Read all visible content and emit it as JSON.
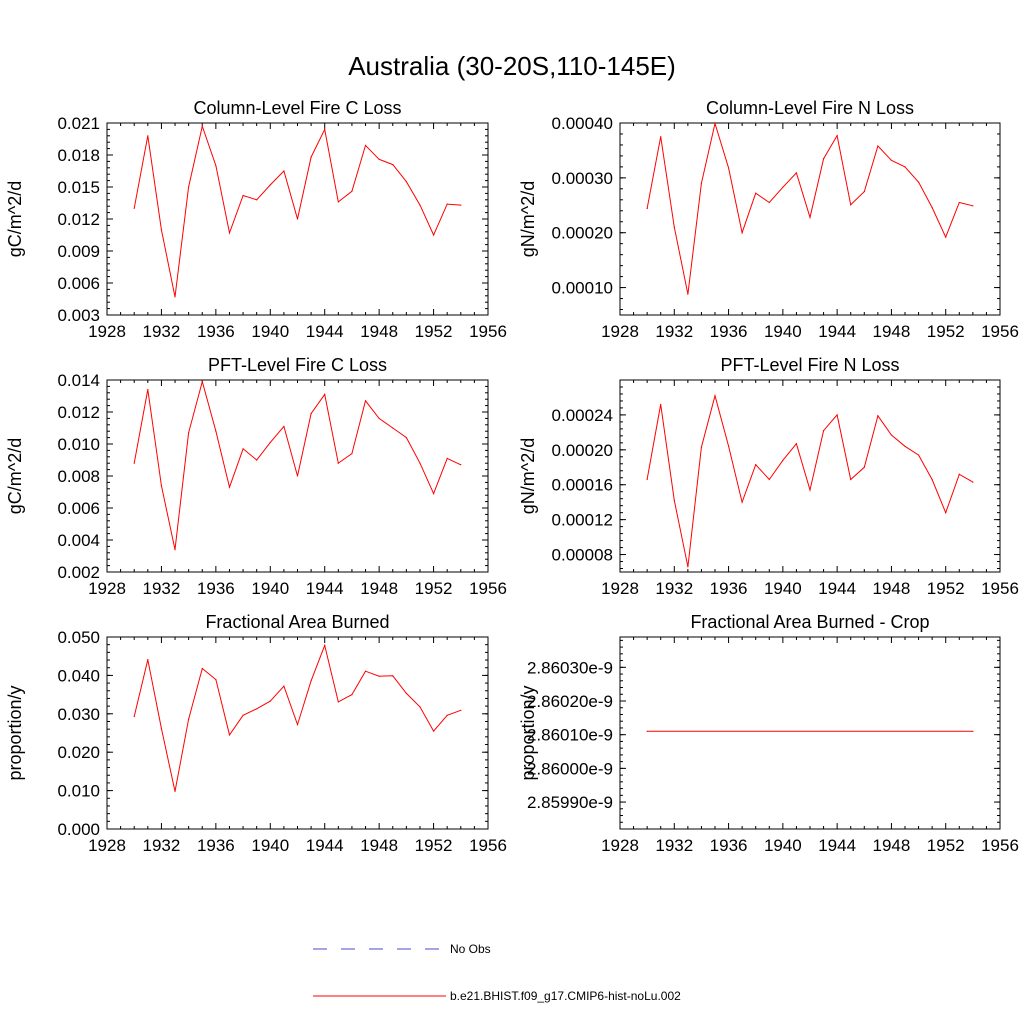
{
  "title": "Australia (30-20S,110-145E)",
  "colors": {
    "model": "#ff0000",
    "obs": "#4b4bcc",
    "axis": "#000000"
  },
  "legend": {
    "obs_label": "No Obs",
    "model_label": "b.e21.BHIST.f09_g17.CMIP6-hist-noLu.002"
  },
  "chart_data": [
    {
      "type": "line",
      "title": "Column-Level Fire C Loss",
      "ylabel": "gC/m^2/d",
      "xlim": [
        1928,
        1956
      ],
      "ylim": [
        0.003,
        0.021
      ],
      "xticks": [
        "1928",
        "1932",
        "1936",
        "1940",
        "1944",
        "1948",
        "1952",
        "1956"
      ],
      "yticks": [
        "0.003",
        "0.006",
        "0.009",
        "0.012",
        "0.015",
        "0.018",
        "0.021"
      ],
      "x": [
        1930,
        1931,
        1932,
        1933,
        1934,
        1935,
        1936,
        1937,
        1938,
        1939,
        1940,
        1941,
        1942,
        1943,
        1944,
        1945,
        1946,
        1947,
        1948,
        1949,
        1950,
        1951,
        1952,
        1953,
        1954
      ],
      "series": [
        {
          "name": "b.e21.BHIST.f09_g17.CMIP6-hist-noLu.002",
          "values": [
            0.013,
            0.0198,
            0.011,
            0.0047,
            0.015,
            0.0207,
            0.017,
            0.0107,
            0.0142,
            0.0138,
            0.0152,
            0.0165,
            0.012,
            0.0178,
            0.0204,
            0.0136,
            0.0146,
            0.0189,
            0.0176,
            0.0171,
            0.0155,
            0.0133,
            0.0105,
            0.0134,
            0.0133
          ]
        }
      ]
    },
    {
      "type": "line",
      "title": "Column-Level Fire N Loss",
      "ylabel": "gN/m^2/d",
      "xlim": [
        1928,
        1956
      ],
      "ylim": [
        5e-05,
        0.0004
      ],
      "xticks": [
        "1928",
        "1932",
        "1936",
        "1940",
        "1944",
        "1948",
        "1952",
        "1956"
      ],
      "yticks": [
        "0.00010",
        "0.00020",
        "0.00030",
        "0.00040"
      ],
      "x": [
        1930,
        1931,
        1932,
        1933,
        1934,
        1935,
        1936,
        1937,
        1938,
        1939,
        1940,
        1941,
        1942,
        1943,
        1944,
        1945,
        1946,
        1947,
        1948,
        1949,
        1950,
        1951,
        1952,
        1953,
        1954
      ],
      "series": [
        {
          "name": "b.e21.BHIST.f09_g17.CMIP6-hist-noLu.002",
          "values": [
            0.000244,
            0.000375,
            0.00021,
            8.8e-05,
            0.00029,
            0.000399,
            0.000318,
            0.0002,
            0.000272,
            0.000255,
            0.000283,
            0.000309,
            0.000228,
            0.000335,
            0.000377,
            0.000251,
            0.000275,
            0.000358,
            0.000332,
            0.00032,
            0.000292,
            0.000246,
            0.000192,
            0.000255,
            0.000249
          ]
        }
      ]
    },
    {
      "type": "line",
      "title": "PFT-Level Fire C Loss",
      "ylabel": "gC/m^2/d",
      "xlim": [
        1928,
        1956
      ],
      "ylim": [
        0.002,
        0.014
      ],
      "xticks": [
        "1928",
        "1932",
        "1936",
        "1940",
        "1944",
        "1948",
        "1952",
        "1956"
      ],
      "yticks": [
        "0.002",
        "0.004",
        "0.006",
        "0.008",
        "0.010",
        "0.012",
        "0.014"
      ],
      "x": [
        1930,
        1931,
        1932,
        1933,
        1934,
        1935,
        1936,
        1937,
        1938,
        1939,
        1940,
        1941,
        1942,
        1943,
        1944,
        1945,
        1946,
        1947,
        1948,
        1949,
        1950,
        1951,
        1952,
        1953,
        1954
      ],
      "series": [
        {
          "name": "b.e21.BHIST.f09_g17.CMIP6-hist-noLu.002",
          "values": [
            0.0088,
            0.0134,
            0.0074,
            0.0034,
            0.0107,
            0.0139,
            0.0108,
            0.0073,
            0.0097,
            0.009,
            0.0101,
            0.0111,
            0.008,
            0.0119,
            0.0131,
            0.0088,
            0.0094,
            0.0127,
            0.0116,
            0.011,
            0.0104,
            0.0088,
            0.0069,
            0.0091,
            0.0087
          ]
        }
      ]
    },
    {
      "type": "line",
      "title": "PFT-Level Fire N Loss",
      "ylabel": "gN/m^2/d",
      "xlim": [
        1928,
        1956
      ],
      "ylim": [
        6e-05,
        0.00028
      ],
      "xticks": [
        "1928",
        "1932",
        "1936",
        "1940",
        "1944",
        "1948",
        "1952",
        "1956"
      ],
      "yticks": [
        "0.00008",
        "0.00012",
        "0.00016",
        "0.00020",
        "0.00024"
      ],
      "x": [
        1930,
        1931,
        1932,
        1933,
        1934,
        1935,
        1936,
        1937,
        1938,
        1939,
        1940,
        1941,
        1942,
        1943,
        1944,
        1945,
        1946,
        1947,
        1948,
        1949,
        1950,
        1951,
        1952,
        1953,
        1954
      ],
      "series": [
        {
          "name": "b.e21.BHIST.f09_g17.CMIP6-hist-noLu.002",
          "values": [
            0.000166,
            0.000252,
            0.000142,
            6.6e-05,
            0.000203,
            0.000262,
            0.000204,
            0.00014,
            0.000183,
            0.000166,
            0.000188,
            0.000207,
            0.000154,
            0.000222,
            0.00024,
            0.000166,
            0.00018,
            0.000239,
            0.000217,
            0.000204,
            0.000194,
            0.000166,
            0.000128,
            0.000172,
            0.000163
          ]
        }
      ]
    },
    {
      "type": "line",
      "title": "Fractional Area Burned",
      "ylabel": "proportion/y",
      "xlim": [
        1928,
        1956
      ],
      "ylim": [
        0.0,
        0.05
      ],
      "xticks": [
        "1928",
        "1932",
        "1936",
        "1940",
        "1944",
        "1948",
        "1952",
        "1956"
      ],
      "yticks": [
        "0.000",
        "0.010",
        "0.020",
        "0.030",
        "0.040",
        "0.050"
      ],
      "x": [
        1930,
        1931,
        1932,
        1933,
        1934,
        1935,
        1936,
        1937,
        1938,
        1939,
        1940,
        1941,
        1942,
        1943,
        1944,
        1945,
        1946,
        1947,
        1948,
        1949,
        1950,
        1951,
        1952,
        1953,
        1954
      ],
      "series": [
        {
          "name": "b.e21.BHIST.f09_g17.CMIP6-hist-noLu.002",
          "values": [
            0.0293,
            0.0441,
            0.0262,
            0.0098,
            0.0286,
            0.0418,
            0.0389,
            0.0245,
            0.0296,
            0.0313,
            0.0333,
            0.0372,
            0.0272,
            0.0386,
            0.0478,
            0.0331,
            0.035,
            0.0411,
            0.0398,
            0.0399,
            0.0353,
            0.0318,
            0.0255,
            0.0296,
            0.0309
          ]
        }
      ]
    },
    {
      "type": "line",
      "title": "Fractional Area Burned - Crop",
      "ylabel": "proportion/y",
      "xlim": [
        1928,
        1956
      ],
      "ylim": [
        2.85982e-09,
        2.86039e-09
      ],
      "xticks": [
        "1928",
        "1932",
        "1936",
        "1940",
        "1944",
        "1948",
        "1952",
        "1956"
      ],
      "yticks": [
        "2.85990e-9",
        "2.86000e-9",
        "2.86010e-9",
        "2.86020e-9",
        "2.86030e-9"
      ],
      "x": [
        1930,
        1954
      ],
      "series": [
        {
          "name": "b.e21.BHIST.f09_g17.CMIP6-hist-noLu.002",
          "values": [
            2.86011e-09,
            2.86011e-09
          ]
        }
      ]
    }
  ]
}
